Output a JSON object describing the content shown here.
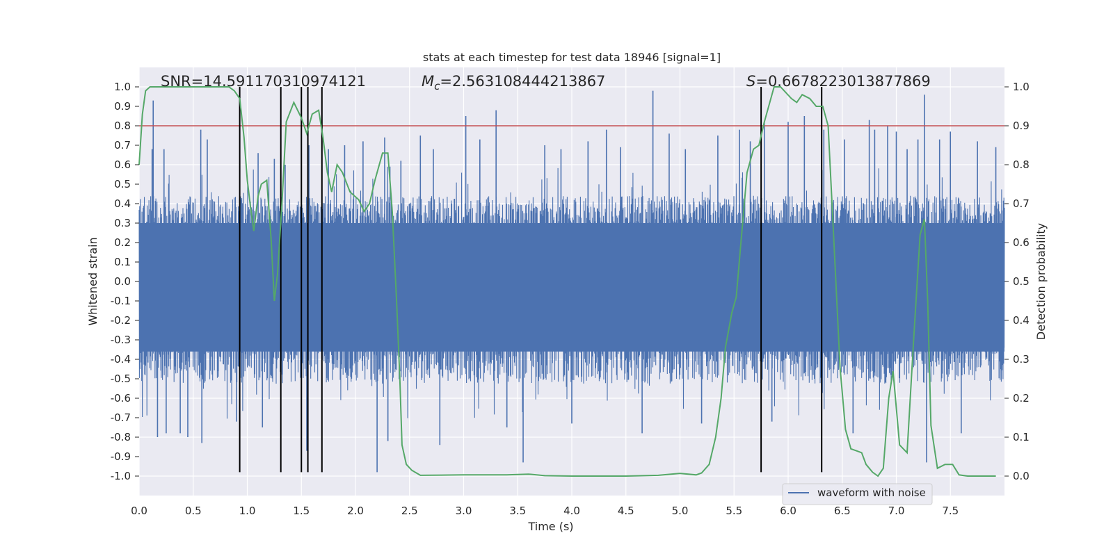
{
  "chart_data": {
    "type": "line",
    "title": "stats at each timestep for test data 18946 [signal=1]",
    "xlabel": "Time (s)",
    "ylabel": "Whitened strain",
    "y2label": "Detection probability",
    "xlim": [
      0.0,
      8.0
    ],
    "ylim": [
      -1.1,
      1.1
    ],
    "y2lim": [
      -0.05,
      1.05
    ],
    "x_ticks": [
      "0.0",
      "0.5",
      "1.0",
      "1.5",
      "2.0",
      "2.5",
      "3.0",
      "3.5",
      "4.0",
      "4.5",
      "5.0",
      "5.5",
      "6.0",
      "6.5",
      "7.0",
      "7.5"
    ],
    "y_ticks": [
      "1.0",
      "0.9",
      "0.8",
      "0.7",
      "0.6",
      "0.5",
      "0.4",
      "0.3",
      "0.2",
      "0.1",
      "0.0",
      "-0.1",
      "-0.2",
      "-0.3",
      "-0.4",
      "-0.5",
      "-0.6",
      "-0.7",
      "-0.8",
      "-0.9",
      "-1.0"
    ],
    "y2_ticks": [
      "1.0",
      "0.9",
      "0.8",
      "0.7",
      "0.6",
      "0.5",
      "0.4",
      "0.3",
      "0.2",
      "0.1",
      "0.0"
    ],
    "grid": true,
    "legend_position": "bottom-right",
    "annotations": {
      "snr": "SNR=14.591170310974121",
      "mc_symbol": "M",
      "mc_subscript": "c",
      "mc_value": "=2.563108444213867",
      "s_symbol": "S",
      "s_value": "=0.6678223013877869"
    },
    "threshold": {
      "y": 0.8,
      "color": "#c44e52"
    },
    "vertical_lines": {
      "x": [
        0.93,
        1.31,
        1.5,
        1.56,
        1.69,
        5.75,
        6.31
      ],
      "y_range": [
        -0.98,
        1.0
      ],
      "color": "#000000"
    },
    "series": [
      {
        "name": "waveform with noise",
        "axis": "left",
        "color": "#4c72b0",
        "style": "dense-noise",
        "envelope": {
          "upper_typical": 0.4,
          "lower_typical": -0.5
        },
        "spikes": [
          [
            0.12,
            0.68
          ],
          [
            0.13,
            0.93
          ],
          [
            0.17,
            -0.8
          ],
          [
            0.23,
            0.68
          ],
          [
            0.25,
            -0.78
          ],
          [
            0.38,
            -0.78
          ],
          [
            0.45,
            -0.8
          ],
          [
            0.57,
            0.78
          ],
          [
            0.58,
            -0.83
          ],
          [
            0.63,
            0.73
          ],
          [
            0.9,
            -0.72
          ],
          [
            1.1,
            0.66
          ],
          [
            1.14,
            -0.75
          ],
          [
            1.25,
            0.63
          ],
          [
            1.35,
            0.6
          ],
          [
            1.55,
            -0.87
          ],
          [
            1.57,
            0.7
          ],
          [
            1.75,
            0.68
          ],
          [
            1.9,
            0.7
          ],
          [
            2.07,
            0.72
          ],
          [
            2.2,
            -0.98
          ],
          [
            2.27,
            0.74
          ],
          [
            2.3,
            -0.82
          ],
          [
            2.42,
            0.62
          ],
          [
            2.6,
            0.75
          ],
          [
            2.72,
            0.68
          ],
          [
            2.78,
            -0.84
          ],
          [
            3.02,
            0.85
          ],
          [
            3.15,
            0.73
          ],
          [
            3.3,
            0.88
          ],
          [
            3.4,
            -0.75
          ],
          [
            3.55,
            -0.93
          ],
          [
            3.75,
            0.7
          ],
          [
            3.9,
            0.68
          ],
          [
            4.0,
            -0.73
          ],
          [
            4.15,
            0.72
          ],
          [
            4.32,
            0.78
          ],
          [
            4.45,
            0.69
          ],
          [
            4.65,
            -0.78
          ],
          [
            4.75,
            0.98
          ],
          [
            4.9,
            0.76
          ],
          [
            5.05,
            0.68
          ],
          [
            5.2,
            -0.73
          ],
          [
            5.35,
            0.75
          ],
          [
            5.55,
            0.78
          ],
          [
            5.65,
            0.72
          ],
          [
            5.78,
            0.82
          ],
          [
            5.85,
            -0.72
          ],
          [
            6.0,
            0.82
          ],
          [
            6.15,
            0.85
          ],
          [
            6.33,
            0.78
          ],
          [
            6.52,
            0.73
          ],
          [
            6.6,
            -0.78
          ],
          [
            6.75,
            0.83
          ],
          [
            6.8,
            0.78
          ],
          [
            6.92,
            0.8
          ],
          [
            7.0,
            0.77
          ],
          [
            7.1,
            0.68
          ],
          [
            7.2,
            0.73
          ],
          [
            7.26,
            0.96
          ],
          [
            7.28,
            -0.93
          ],
          [
            7.4,
            0.73
          ],
          [
            7.5,
            0.77
          ],
          [
            7.6,
            -0.78
          ],
          [
            7.75,
            0.72
          ],
          [
            7.92,
            0.69
          ]
        ]
      },
      {
        "name": "",
        "axis": "right",
        "color": "#55a868",
        "points": [
          [
            0.0,
            0.8
          ],
          [
            0.03,
            0.93
          ],
          [
            0.06,
            0.99
          ],
          [
            0.1,
            1.0
          ],
          [
            0.5,
            1.0
          ],
          [
            0.83,
            1.0
          ],
          [
            0.88,
            0.99
          ],
          [
            0.93,
            0.97
          ],
          [
            0.97,
            0.87
          ],
          [
            1.0,
            0.76
          ],
          [
            1.03,
            0.69
          ],
          [
            1.06,
            0.63
          ],
          [
            1.1,
            0.72
          ],
          [
            1.13,
            0.75
          ],
          [
            1.18,
            0.76
          ],
          [
            1.22,
            0.61
          ],
          [
            1.25,
            0.45
          ],
          [
            1.28,
            0.52
          ],
          [
            1.32,
            0.7
          ],
          [
            1.36,
            0.91
          ],
          [
            1.43,
            0.96
          ],
          [
            1.5,
            0.92
          ],
          [
            1.55,
            0.88
          ],
          [
            1.6,
            0.93
          ],
          [
            1.66,
            0.94
          ],
          [
            1.7,
            0.87
          ],
          [
            1.74,
            0.78
          ],
          [
            1.78,
            0.73
          ],
          [
            1.83,
            0.8
          ],
          [
            1.88,
            0.78
          ],
          [
            1.95,
            0.73
          ],
          [
            2.03,
            0.71
          ],
          [
            2.08,
            0.68
          ],
          [
            2.13,
            0.7
          ],
          [
            2.18,
            0.76
          ],
          [
            2.25,
            0.83
          ],
          [
            2.3,
            0.83
          ],
          [
            2.34,
            0.68
          ],
          [
            2.38,
            0.45
          ],
          [
            2.41,
            0.25
          ],
          [
            2.43,
            0.08
          ],
          [
            2.47,
            0.03
          ],
          [
            2.52,
            0.015
          ],
          [
            2.6,
            0.002
          ],
          [
            3.0,
            0.003
          ],
          [
            3.4,
            0.003
          ],
          [
            3.6,
            0.005
          ],
          [
            3.75,
            0.001
          ],
          [
            4.0,
            0.0
          ],
          [
            4.5,
            0.0
          ],
          [
            4.8,
            0.002
          ],
          [
            5.0,
            0.007
          ],
          [
            5.15,
            0.003
          ],
          [
            5.2,
            0.008
          ],
          [
            5.27,
            0.03
          ],
          [
            5.33,
            0.1
          ],
          [
            5.38,
            0.2
          ],
          [
            5.42,
            0.33
          ],
          [
            5.48,
            0.42
          ],
          [
            5.52,
            0.46
          ],
          [
            5.57,
            0.62
          ],
          [
            5.62,
            0.78
          ],
          [
            5.68,
            0.84
          ],
          [
            5.73,
            0.85
          ],
          [
            5.78,
            0.91
          ],
          [
            5.83,
            0.96
          ],
          [
            5.87,
            1.0
          ],
          [
            5.93,
            1.0
          ],
          [
            6.03,
            0.97
          ],
          [
            6.08,
            0.96
          ],
          [
            6.13,
            0.98
          ],
          [
            6.2,
            0.97
          ],
          [
            6.26,
            0.95
          ],
          [
            6.32,
            0.95
          ],
          [
            6.37,
            0.9
          ],
          [
            6.42,
            0.62
          ],
          [
            6.48,
            0.28
          ],
          [
            6.53,
            0.12
          ],
          [
            6.58,
            0.07
          ],
          [
            6.63,
            0.065
          ],
          [
            6.68,
            0.06
          ],
          [
            6.72,
            0.03
          ],
          [
            6.78,
            0.01
          ],
          [
            6.83,
            0.0
          ],
          [
            6.88,
            0.02
          ],
          [
            6.93,
            0.2
          ],
          [
            6.97,
            0.27
          ],
          [
            7.03,
            0.08
          ],
          [
            7.1,
            0.06
          ],
          [
            7.16,
            0.35
          ],
          [
            7.22,
            0.62
          ],
          [
            7.26,
            0.66
          ],
          [
            7.29,
            0.45
          ],
          [
            7.32,
            0.13
          ],
          [
            7.38,
            0.02
          ],
          [
            7.45,
            0.03
          ],
          [
            7.52,
            0.03
          ],
          [
            7.58,
            0.003
          ],
          [
            7.66,
            0.0
          ],
          [
            7.75,
            0.0
          ],
          [
            7.92,
            0.0
          ]
        ]
      }
    ]
  }
}
